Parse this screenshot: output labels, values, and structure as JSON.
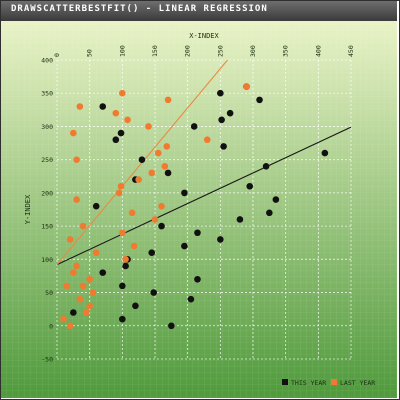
{
  "window": {
    "title": "DRAWSCATTERBESTFIT() - LINEAR REGRESSION"
  },
  "colors": {
    "title_bar": "#4a4a4a",
    "plot_top": "#e9f3c6",
    "plot_bottom": "#4f9a3b",
    "this_year": "#111111",
    "last_year": "#f07a2f",
    "this_year_fit": "#1a1a1a",
    "last_year_fit": "#e98a42"
  },
  "chart_data": {
    "type": "scatter",
    "title": "DRAWSCATTERBESTFIT() - LINEAR REGRESSION",
    "xlabel": "X-INDEX",
    "ylabel": "Y-INDEX",
    "xlim": [
      0,
      450
    ],
    "ylim": [
      -50,
      400
    ],
    "x_ticks": [
      0,
      50,
      100,
      150,
      200,
      250,
      300,
      350,
      400,
      450
    ],
    "y_ticks": [
      -50,
      0,
      50,
      100,
      150,
      200,
      250,
      300,
      350,
      400
    ],
    "x_axis_position": "top",
    "grid": true,
    "legend_position": "bottom-right",
    "series": [
      {
        "name": "THIS YEAR",
        "color": "#111111",
        "points": [
          [
            70,
            330
          ],
          [
            90,
            280
          ],
          [
            98,
            290
          ],
          [
            60,
            180
          ],
          [
            70,
            80
          ],
          [
            100,
            60
          ],
          [
            100,
            10
          ],
          [
            105,
            90
          ],
          [
            108,
            100
          ],
          [
            120,
            30
          ],
          [
            120,
            220
          ],
          [
            130,
            250
          ],
          [
            145,
            110
          ],
          [
            148,
            50
          ],
          [
            160,
            150
          ],
          [
            170,
            230
          ],
          [
            175,
            0
          ],
          [
            195,
            200
          ],
          [
            195,
            120
          ],
          [
            205,
            40
          ],
          [
            210,
            300
          ],
          [
            215,
            70
          ],
          [
            215,
            140
          ],
          [
            250,
            350
          ],
          [
            252,
            310
          ],
          [
            255,
            270
          ],
          [
            250,
            130
          ],
          [
            265,
            320
          ],
          [
            280,
            160
          ],
          [
            290,
            360
          ],
          [
            295,
            210
          ],
          [
            310,
            340
          ],
          [
            320,
            240
          ],
          [
            325,
            170
          ],
          [
            335,
            190
          ],
          [
            410,
            260
          ],
          [
            25,
            20
          ]
        ],
        "fit_line": [
          [
            0,
            92
          ],
          [
            450,
            299
          ]
        ]
      },
      {
        "name": "LAST YEAR",
        "color": "#f07a2f",
        "points": [
          [
            10,
            10
          ],
          [
            20,
            0
          ],
          [
            25,
            290
          ],
          [
            30,
            250
          ],
          [
            35,
            330
          ],
          [
            40,
            150
          ],
          [
            30,
            190
          ],
          [
            20,
            130
          ],
          [
            30,
            90
          ],
          [
            25,
            80
          ],
          [
            45,
            20
          ],
          [
            40,
            60
          ],
          [
            50,
            30
          ],
          [
            55,
            50
          ],
          [
            50,
            70
          ],
          [
            60,
            110
          ],
          [
            35,
            40
          ],
          [
            90,
            320
          ],
          [
            100,
            350
          ],
          [
            95,
            200
          ],
          [
            98,
            210
          ],
          [
            100,
            140
          ],
          [
            105,
            100
          ],
          [
            108,
            310
          ],
          [
            115,
            170
          ],
          [
            118,
            120
          ],
          [
            125,
            220
          ],
          [
            140,
            300
          ],
          [
            145,
            230
          ],
          [
            150,
            160
          ],
          [
            155,
            260
          ],
          [
            160,
            180
          ],
          [
            165,
            240
          ],
          [
            168,
            270
          ],
          [
            170,
            340
          ],
          [
            230,
            280
          ],
          [
            290,
            360
          ],
          [
            15,
            60
          ]
        ],
        "fit_line": [
          [
            0,
            92
          ],
          [
            261,
            400
          ]
        ]
      }
    ]
  }
}
